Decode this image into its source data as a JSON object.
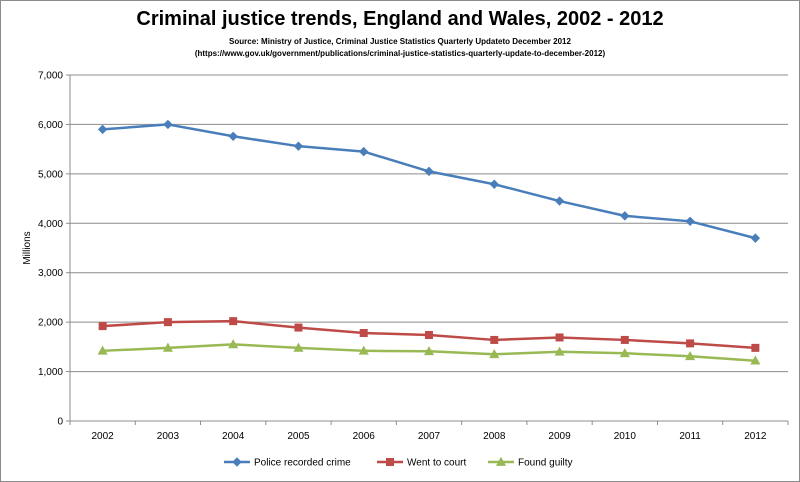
{
  "chart_data": {
    "type": "line",
    "title": "Criminal justice trends, England and Wales, 2002 - 2012",
    "source_line1": "Source: Ministry of Justice, Criminal Justice Statistics Quarterly Updateto December 2012",
    "source_line2": "(https://www.gov.uk/government/publications/criminal-justice-statistics-quarterly-update-to-december-2012)",
    "ylabel": "Millions",
    "xlabel": "",
    "ylim": [
      0,
      7000
    ],
    "yticks": [
      0,
      1000,
      2000,
      3000,
      4000,
      5000,
      6000,
      7000
    ],
    "ytick_labels": [
      "0",
      "1,000",
      "2,000",
      "3,000",
      "4,000",
      "5,000",
      "6,000",
      "7,000"
    ],
    "x": [
      "2002",
      "2003",
      "2004",
      "2005",
      "2006",
      "2007",
      "2008",
      "2009",
      "2010",
      "2011",
      "2012"
    ],
    "grid": "horizontal",
    "legend": "bottom",
    "series": [
      {
        "name": "Police recorded crime",
        "color": "#4a7ebb",
        "marker": "diamond",
        "values": [
          5900,
          6000,
          5760,
          5560,
          5450,
          5050,
          4790,
          4450,
          4150,
          4040,
          3700
        ]
      },
      {
        "name": "Went to court",
        "color": "#be4b48",
        "marker": "square",
        "values": [
          1920,
          2000,
          2020,
          1890,
          1780,
          1740,
          1640,
          1690,
          1640,
          1570,
          1480
        ]
      },
      {
        "name": "Found guilty",
        "color": "#98b954",
        "marker": "triangle",
        "values": [
          1420,
          1480,
          1550,
          1480,
          1420,
          1410,
          1350,
          1400,
          1370,
          1310,
          1220
        ]
      }
    ]
  }
}
